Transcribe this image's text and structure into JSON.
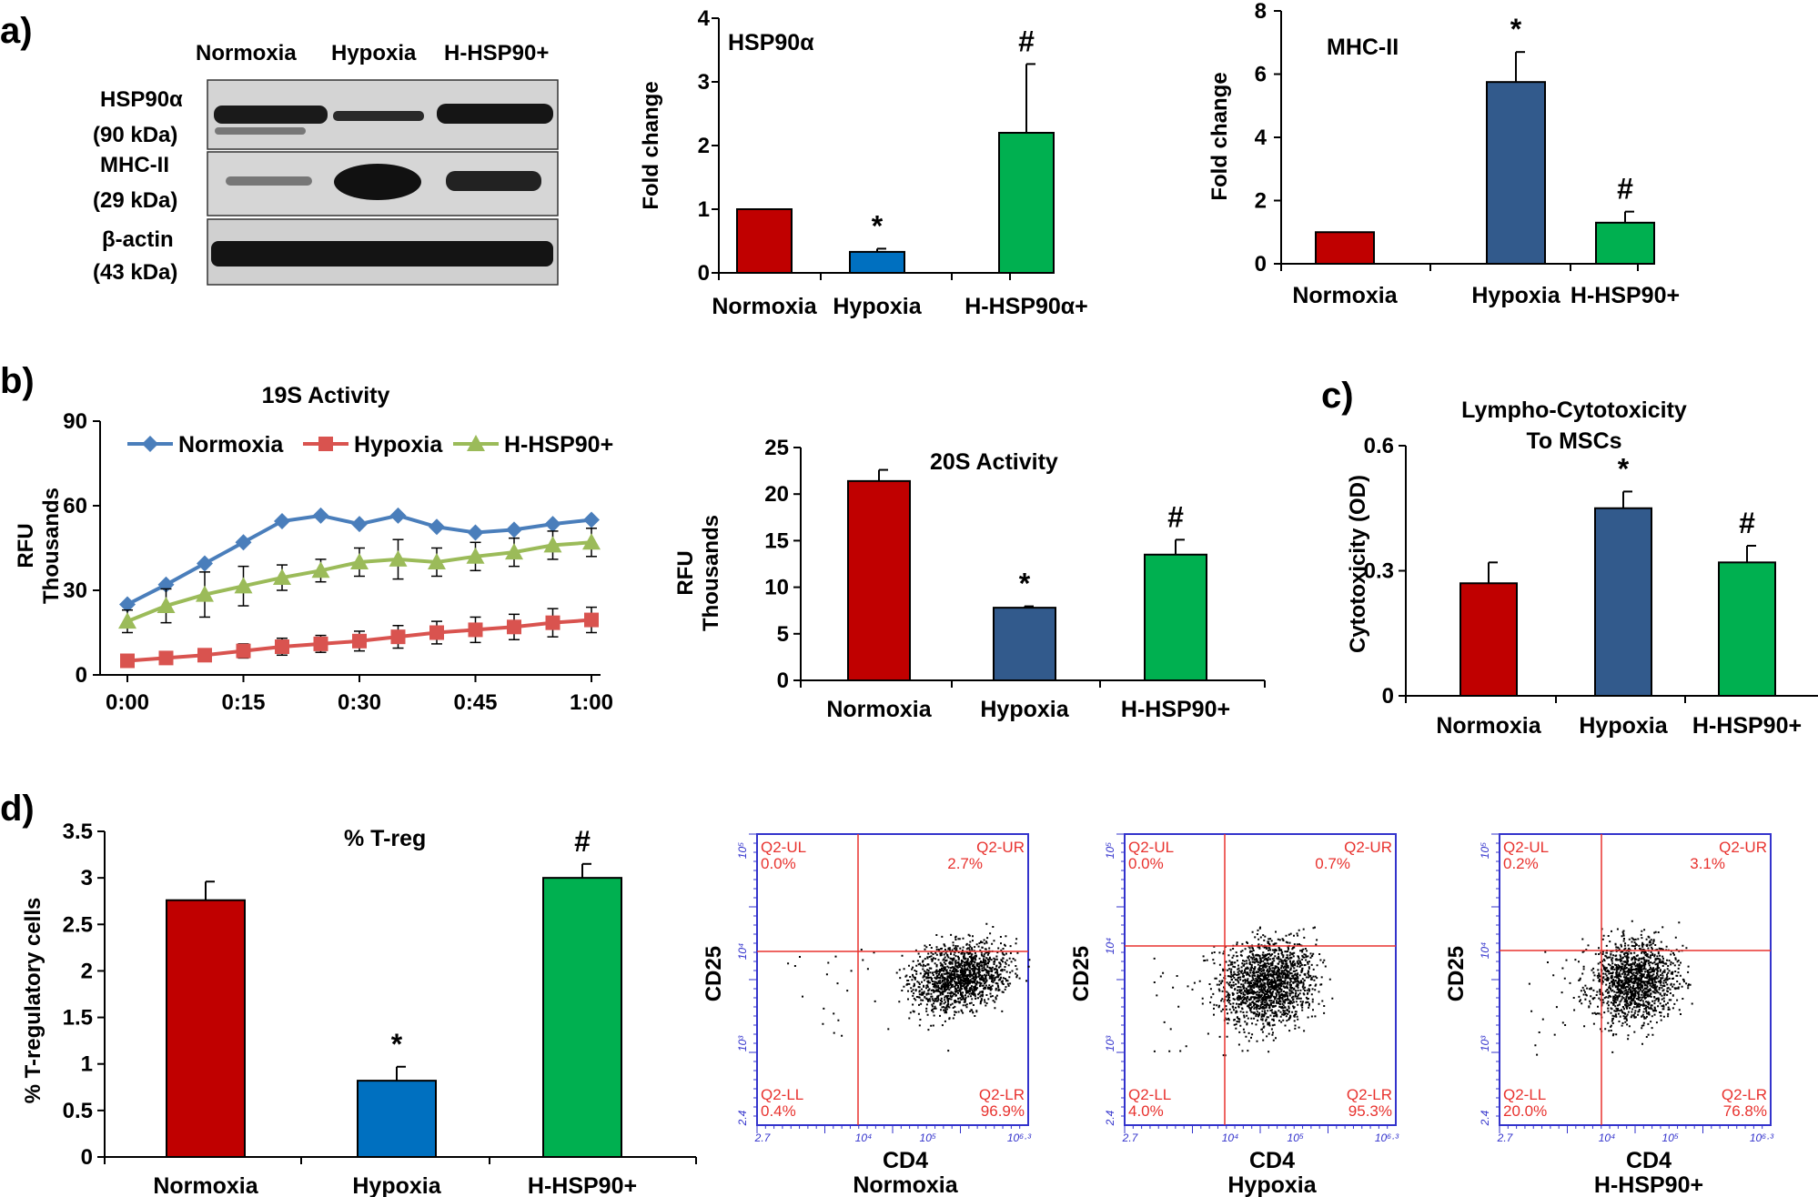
{
  "panel_labels": [
    "a)",
    "b)",
    "c)",
    "d)"
  ],
  "colors": {
    "red": "#c00000",
    "blue_bright": "#0070c0",
    "blue_dark": "#325a8c",
    "green": "#00b050",
    "line_blue": "#4a7ebb",
    "line_red": "#d9534f",
    "line_green": "#9bbb59",
    "facs_frame": "#3333cc",
    "facs_gate": "#e8322e"
  },
  "blot": {
    "lanes": [
      "Normoxia",
      "Hypoxia",
      "H-HSP90+"
    ],
    "rows": [
      {
        "name": "HSP90α",
        "size": "(90 kDa)"
      },
      {
        "name": "MHC-II",
        "size": "(29 kDa)"
      },
      {
        "name": "β-actin",
        "size": "(43 kDa)"
      }
    ]
  },
  "flow": {
    "quadrant_names": [
      "Q2-UL",
      "Q2-UR",
      "Q2-LL",
      "Q2-LR"
    ],
    "x_axis_label": "CD4",
    "y_axis_label": "CD25",
    "x_ticks": [
      "2.7",
      "10⁴",
      "10⁵",
      "10⁶·³"
    ],
    "y_ticks": [
      "2.4",
      "10³",
      "10⁴",
      "10⁵"
    ],
    "plots": [
      {
        "condition": "Normoxia",
        "ul": "0.0%",
        "ur": "2.7%",
        "ll": "0.4%",
        "lr": "96.9%"
      },
      {
        "condition": "Hypoxia",
        "ul": "0.0%",
        "ur": "0.7%",
        "ll": "4.0%",
        "lr": "95.3%"
      },
      {
        "condition": "H-HSP90+",
        "ul": "0.2%",
        "ur": "3.1%",
        "ll": "20.0%",
        "lr": "76.8%"
      }
    ]
  },
  "chart_data": [
    {
      "id": "hsp90a",
      "type": "bar",
      "title": "HSP90α",
      "ylabel": "Fold change",
      "ylim": [
        0,
        4
      ],
      "yticks": [
        0,
        1,
        2,
        3,
        4
      ],
      "categories": [
        "Normoxia",
        "Hypoxia",
        "H-HSP90α+"
      ],
      "values": [
        1.0,
        0.33,
        2.2
      ],
      "errors": [
        0.0,
        0.05,
        1.08
      ],
      "bar_colors": [
        "red",
        "blue_bright",
        "green"
      ],
      "markers": [
        "",
        "*",
        "#"
      ]
    },
    {
      "id": "mhc2",
      "type": "bar",
      "title": "MHC-II",
      "ylabel": "Fold change",
      "ylim": [
        0,
        8
      ],
      "yticks": [
        0,
        2,
        4,
        6,
        8
      ],
      "categories": [
        "Normoxia",
        "Hypoxia",
        "H-HSP90+"
      ],
      "values": [
        1.0,
        5.75,
        1.3
      ],
      "errors": [
        0.0,
        0.95,
        0.35
      ],
      "bar_colors": [
        "red",
        "blue_dark",
        "green"
      ],
      "markers": [
        "",
        "*",
        "#"
      ]
    },
    {
      "id": "s19",
      "type": "line",
      "title": "19S Activity",
      "ylabel": [
        "RFU",
        "Thousands"
      ],
      "ylim": [
        0,
        90
      ],
      "yticks": [
        0,
        30,
        60,
        90
      ],
      "x": [
        0,
        5,
        10,
        15,
        20,
        25,
        30,
        35,
        40,
        45,
        50,
        55,
        60
      ],
      "xticks": [
        {
          "v": 0,
          "label": "0:00"
        },
        {
          "v": 15,
          "label": "0:15"
        },
        {
          "v": 30,
          "label": "0:30"
        },
        {
          "v": 45,
          "label": "0:45"
        },
        {
          "v": 60,
          "label": "1:00"
        }
      ],
      "series": [
        {
          "name": "Normoxia",
          "color": "line_blue",
          "marker": "diamond",
          "values": [
            25,
            32,
            39.5,
            47,
            54.5,
            56.5,
            53.5,
            56.5,
            52.5,
            50.5,
            51.5,
            53.5,
            55
          ],
          "errors": [
            0,
            0,
            0,
            0,
            0,
            0,
            0,
            0,
            0,
            0,
            0,
            0,
            0
          ]
        },
        {
          "name": "Hypoxia",
          "color": "line_red",
          "marker": "square",
          "values": [
            5,
            6,
            7,
            8.5,
            10,
            11,
            12,
            13.5,
            15,
            16,
            17,
            18.5,
            19.5
          ],
          "errors": [
            1.5,
            1.5,
            2,
            2.5,
            3,
            3,
            3.5,
            4,
            4,
            4.5,
            4.5,
            5,
            4.5
          ]
        },
        {
          "name": "H-HSP90+",
          "color": "line_green",
          "marker": "triangle",
          "values": [
            19,
            24.5,
            28.5,
            31.5,
            34.5,
            37,
            40,
            41,
            40,
            42,
            43.5,
            46,
            47
          ],
          "errors": [
            4,
            6,
            8,
            7,
            4.5,
            4,
            5,
            7,
            5,
            5,
            5,
            5,
            5
          ]
        }
      ]
    },
    {
      "id": "s20",
      "type": "bar",
      "title": "20S Activity",
      "ylabel": [
        "RFU",
        "Thousands"
      ],
      "ylim": [
        0,
        25
      ],
      "yticks": [
        0,
        5,
        10,
        15,
        20,
        25
      ],
      "categories": [
        "Normoxia",
        "Hypoxia",
        "H-HSP90+"
      ],
      "values": [
        21.4,
        7.8,
        13.5
      ],
      "errors": [
        1.2,
        0.15,
        1.6
      ],
      "bar_colors": [
        "red",
        "blue_dark",
        "green"
      ],
      "markers": [
        "",
        "*",
        "#"
      ]
    },
    {
      "id": "cyto",
      "type": "bar",
      "title": [
        "Lympho-Cytotoxicity",
        "To  MSCs"
      ],
      "ylabel": "Cytotoxicity (OD)",
      "ylim": [
        0,
        0.6
      ],
      "yticks": [
        0,
        0.3,
        0.6
      ],
      "ytick_labels": [
        "0",
        "0.3",
        "0.6"
      ],
      "categories": [
        "Normoxia",
        "Hypoxia",
        "H-HSP90+"
      ],
      "values": [
        0.27,
        0.45,
        0.32
      ],
      "errors": [
        0.05,
        0.04,
        0.04
      ],
      "bar_colors": [
        "red",
        "blue_dark",
        "green"
      ],
      "markers": [
        "",
        "*",
        "#"
      ]
    },
    {
      "id": "treg",
      "type": "bar",
      "title": "% T-reg",
      "ylabel": "% T-regulatory cells",
      "ylim": [
        0,
        3.5
      ],
      "yticks": [
        0,
        0.5,
        1,
        1.5,
        2,
        2.5,
        3,
        3.5
      ],
      "categories": [
        "Normoxia",
        "Hypoxia",
        "H-HSP90+"
      ],
      "values": [
        2.76,
        0.82,
        3.0
      ],
      "errors": [
        0.2,
        0.15,
        0.15
      ],
      "bar_colors": [
        "red",
        "blue_bright",
        "green"
      ],
      "markers": [
        "",
        "*",
        "#"
      ]
    }
  ]
}
